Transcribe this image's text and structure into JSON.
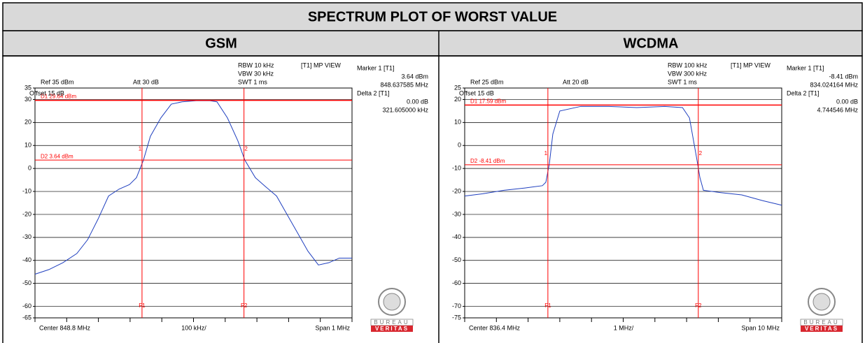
{
  "header": {
    "title": "SPECTRUM PLOT OF WORST VALUE"
  },
  "chart_data": [
    {
      "type": "line",
      "title": "GSM",
      "annotations": {
        "ref": "Ref 35 dBm",
        "att": "Att 30 dB",
        "rbw": "RBW 10 kHz",
        "vbw": "VBW 30 kHz",
        "swt": "SWT 1 ms",
        "view": "[T1] MP VIEW",
        "offset": "Offset 15 dB",
        "marker1": "Marker 1 [T1]",
        "marker1_level": "3.64 dBm",
        "marker1_freq": "848.637585 MHz",
        "delta2": "Delta 2 [T1]",
        "delta2_level": "0.00 dB",
        "delta2_freq": "321.605000 kHz",
        "center": "Center 848.8 MHz",
        "div": "100 kHz/",
        "span": "Span 1 MHz",
        "d1": "D1 29.64 dBm",
        "d2": "D2 3.64 dBm",
        "f1": "F1",
        "f2": "F2",
        "m1": "1",
        "m2": "2"
      },
      "x": [
        848.3,
        848.344,
        848.388,
        848.432,
        848.466,
        848.499,
        848.532,
        848.565,
        848.598,
        848.62,
        848.642,
        848.664,
        848.697,
        848.73,
        848.764,
        848.808,
        848.852,
        848.874,
        848.907,
        848.94,
        848.962,
        848.995,
        849.028,
        849.062,
        849.095,
        849.128,
        849.161,
        849.194,
        849.227,
        849.26,
        849.3
      ],
      "values": [
        -46,
        -44,
        -41,
        -37,
        -31,
        -22,
        -12,
        -9,
        -7,
        -4,
        3.6,
        14,
        22,
        28,
        29,
        29.5,
        29.5,
        29,
        22,
        12,
        3.6,
        -4,
        -8,
        -12,
        -20,
        -28,
        -36,
        -42,
        -41,
        -39,
        -39
      ],
      "color": "#1f3fbf",
      "xlim": [
        848.3,
        849.3
      ],
      "xticks": [
        848.3,
        848.4,
        848.5,
        848.6,
        848.7,
        848.8,
        848.9,
        849.0,
        849.1,
        849.2,
        849.3
      ],
      "ylim": [
        -65,
        35
      ],
      "yticks": [
        35,
        30,
        20,
        10,
        0,
        -10,
        -20,
        -30,
        -40,
        -50,
        -60,
        -65
      ],
      "grid": true,
      "lines": {
        "d1": 29.64,
        "d2": 3.64,
        "f1": 848.637585,
        "f2": 848.95919
      },
      "line_color": "#ff0000",
      "logo": [
        "BUREAU",
        "VERITAS"
      ]
    },
    {
      "type": "line",
      "title": "WCDMA",
      "annotations": {
        "ref": "Ref 25 dBm",
        "att": "Att 20 dB",
        "rbw": "RBW 100 kHz",
        "vbw": "VBW 300 kHz",
        "swt": "SWT 1 ms",
        "view": "[T1] MP VIEW",
        "offset": "Offset 15 dB",
        "marker1": "Marker 1 [T1]",
        "marker1_level": "-8.41 dBm",
        "marker1_freq": "834.024164 MHz",
        "delta2": "Delta 2 [T1]",
        "delta2_level": "0.00 dB",
        "delta2_freq": "4.744546 MHz",
        "center": "Center 836.4 MHz",
        "div": "1 MHz/",
        "span": "Span 10 MHz",
        "d1": "D1 17.59 dBm",
        "d2": "D2 -8.41 dBm",
        "f1": "F1",
        "f2": "F2",
        "m1": "1",
        "m2": "2"
      },
      "x": [
        831.4,
        831.97,
        832.64,
        833.3,
        833.85,
        833.96,
        834.07,
        834.18,
        834.4,
        835.06,
        835.95,
        836.83,
        837.71,
        838.27,
        838.49,
        838.71,
        838.82,
        838.93,
        839.48,
        840.14,
        840.8,
        841.4
      ],
      "values": [
        -22,
        -21,
        -19.5,
        -18.5,
        -17.5,
        -16,
        -8,
        5,
        15,
        17,
        17,
        16.5,
        17,
        16.5,
        12,
        -5,
        -14,
        -19.5,
        -20.5,
        -21.5,
        -24,
        -26
      ],
      "color": "#1f3fbf",
      "xlim": [
        831.4,
        841.4
      ],
      "xticks": [
        831.4,
        832.4,
        833.4,
        834.4,
        835.4,
        836.4,
        837.4,
        838.4,
        839.4,
        840.4,
        841.4
      ],
      "ylim": [
        -75,
        25
      ],
      "yticks": [
        25,
        20,
        10,
        0,
        -10,
        -20,
        -30,
        -40,
        -50,
        -60,
        -70,
        -75
      ],
      "grid": true,
      "lines": {
        "d1": 17.59,
        "d2": -8.41,
        "f1": 834.024164,
        "f2": 838.76871
      },
      "line_color": "#ff0000",
      "logo": [
        "BUREAU",
        "VERITAS"
      ]
    }
  ]
}
